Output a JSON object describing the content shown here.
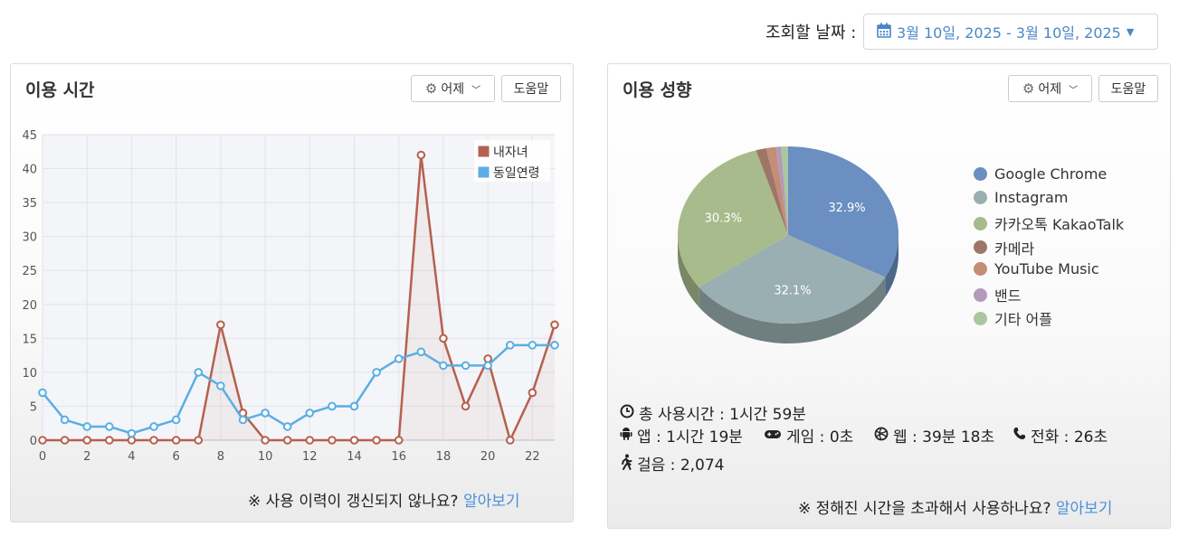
{
  "date_range": {
    "label": "조회할 날짜 :",
    "value": "3월 10일, 2025 - 3월 10일, 2025"
  },
  "left_panel": {
    "title": "이용 시간",
    "day_button": "어제",
    "help_button": "도움말",
    "footer_text": "※ 사용 이력이 갱신되지 않나요?",
    "footer_link": "알아보기"
  },
  "right_panel": {
    "title": "이용 성향",
    "day_button": "어제",
    "help_button": "도움말",
    "footer_text": "※ 정해진 시간을 초과해서 사용하나요?",
    "footer_link": "알아보기",
    "stats": {
      "total": "총 사용시간 : 1시간 59분",
      "app": "앱 : 1시간 19분",
      "game": "게임 : 0초",
      "web": "웹 : 39분 18초",
      "phone": "전화 : 26초",
      "steps": "걸음 : 2,074"
    }
  },
  "chart_data": [
    {
      "type": "line",
      "x": [
        0,
        1,
        2,
        3,
        4,
        5,
        6,
        7,
        8,
        9,
        10,
        11,
        12,
        13,
        14,
        15,
        16,
        17,
        18,
        19,
        20,
        21,
        22,
        23
      ],
      "xticks": [
        "0",
        "2",
        "4",
        "6",
        "8",
        "10",
        "12",
        "14",
        "16",
        "18",
        "20",
        "22"
      ],
      "yticks": [
        "0",
        "5",
        "10",
        "15",
        "20",
        "25",
        "30",
        "35",
        "40",
        "45"
      ],
      "ylim": [
        0,
        45
      ],
      "grid": true,
      "legend_position": "top-right",
      "series": [
        {
          "name": "내자녀",
          "color": "#b5614f",
          "values": [
            0,
            0,
            0,
            0,
            0,
            0,
            0,
            0,
            17,
            4,
            0,
            0,
            0,
            0,
            0,
            0,
            0,
            42,
            15,
            5,
            12,
            0,
            7,
            17
          ]
        },
        {
          "name": "동일연령",
          "color": "#5aaee5",
          "values": [
            7,
            3,
            2,
            2,
            1,
            2,
            3,
            10,
            8,
            3,
            4,
            2,
            4,
            5,
            5,
            10,
            12,
            13,
            11,
            11,
            11,
            14,
            14,
            14
          ]
        }
      ]
    },
    {
      "type": "pie",
      "legend_position": "right",
      "slices": [
        {
          "label": "Google Chrome",
          "value": 32.9,
          "color": "#6a8fc0",
          "shown_label": "32.9%"
        },
        {
          "label": "Instagram",
          "value": 32.1,
          "color": "#9aafb1",
          "shown_label": "32.1%"
        },
        {
          "label": "카카오톡 KakaoTalk",
          "value": 30.3,
          "color": "#a8bb8c",
          "shown_label": "30.3%"
        },
        {
          "label": "카메라",
          "value": 1.5,
          "color": "#9d7668",
          "shown_label": ""
        },
        {
          "label": "YouTube Music",
          "value": 1.4,
          "color": "#c38d76",
          "shown_label": ""
        },
        {
          "label": "밴드",
          "value": 0.8,
          "color": "#b39aba",
          "shown_label": ""
        },
        {
          "label": "기타 어플",
          "value": 1.0,
          "color": "#a9c7a0",
          "shown_label": ""
        }
      ]
    }
  ]
}
